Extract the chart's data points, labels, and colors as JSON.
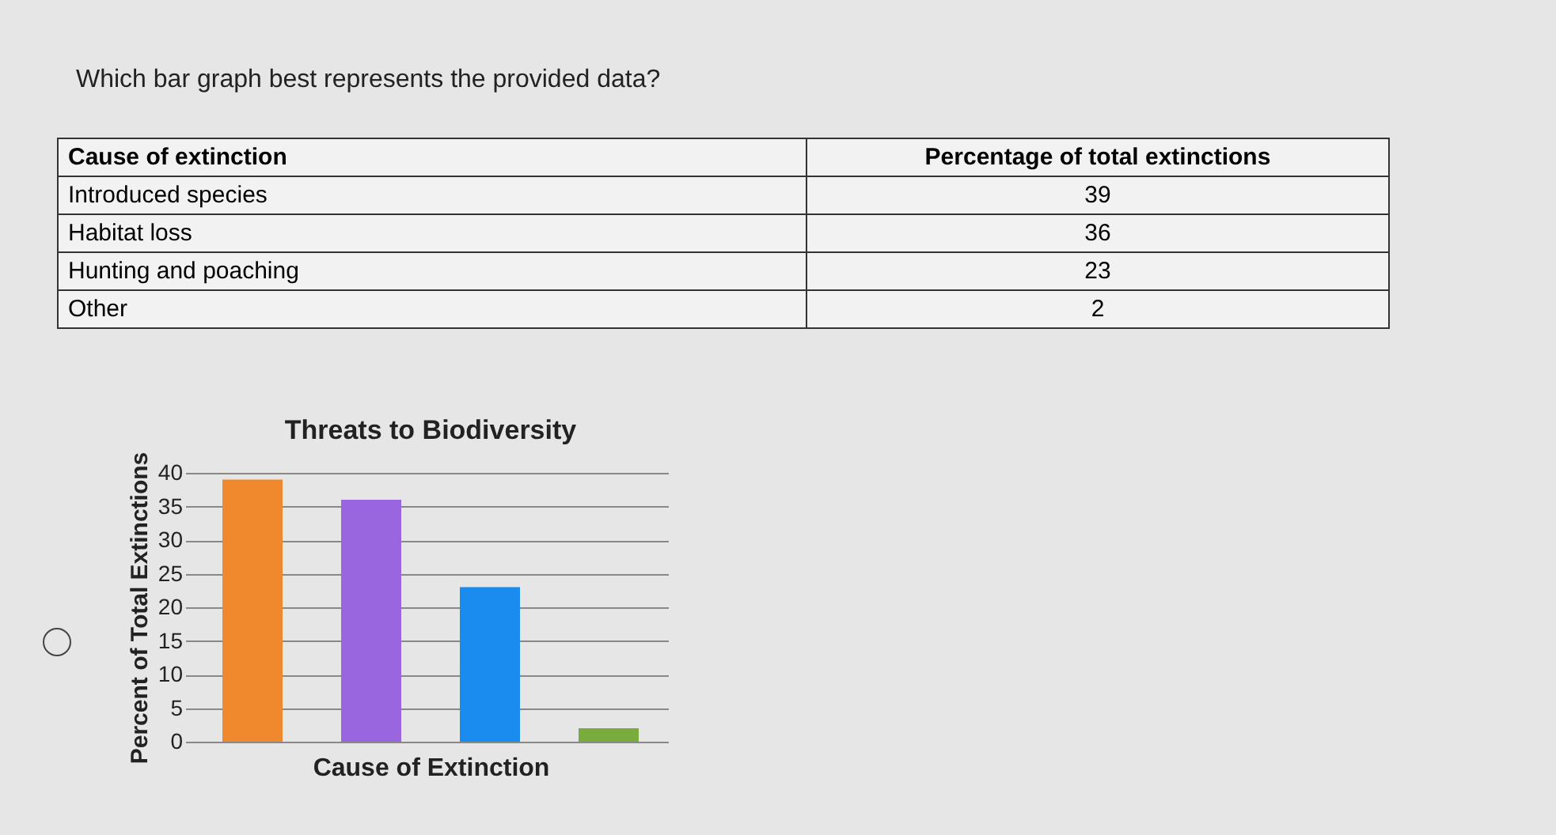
{
  "chart_data": {
    "type": "bar",
    "title": "Threats to Biodiversity",
    "xlabel": "Cause of Extinction",
    "ylabel": "Percent of Total Extinctions",
    "categories": [
      null,
      null,
      null,
      null
    ],
    "values": [
      39,
      36,
      23,
      2
    ],
    "colors": [
      "#f0892e",
      "#9a66e0",
      "#1a8cf0",
      "#7aab3d"
    ],
    "ylim": [
      0,
      40
    ],
    "yticks": [
      0,
      5,
      10,
      15,
      20,
      25,
      30,
      35,
      40
    ],
    "grid": "y",
    "tick_labels": "y",
    "annotations": [
      "Which bar graph best represents the provided data?",
      "Cause of extinction",
      "Percentage of total extinctions",
      "Introduced species",
      "39",
      "Habitat loss",
      "36",
      "Hunting and poaching",
      "23",
      "Other",
      "2"
    ]
  }
}
